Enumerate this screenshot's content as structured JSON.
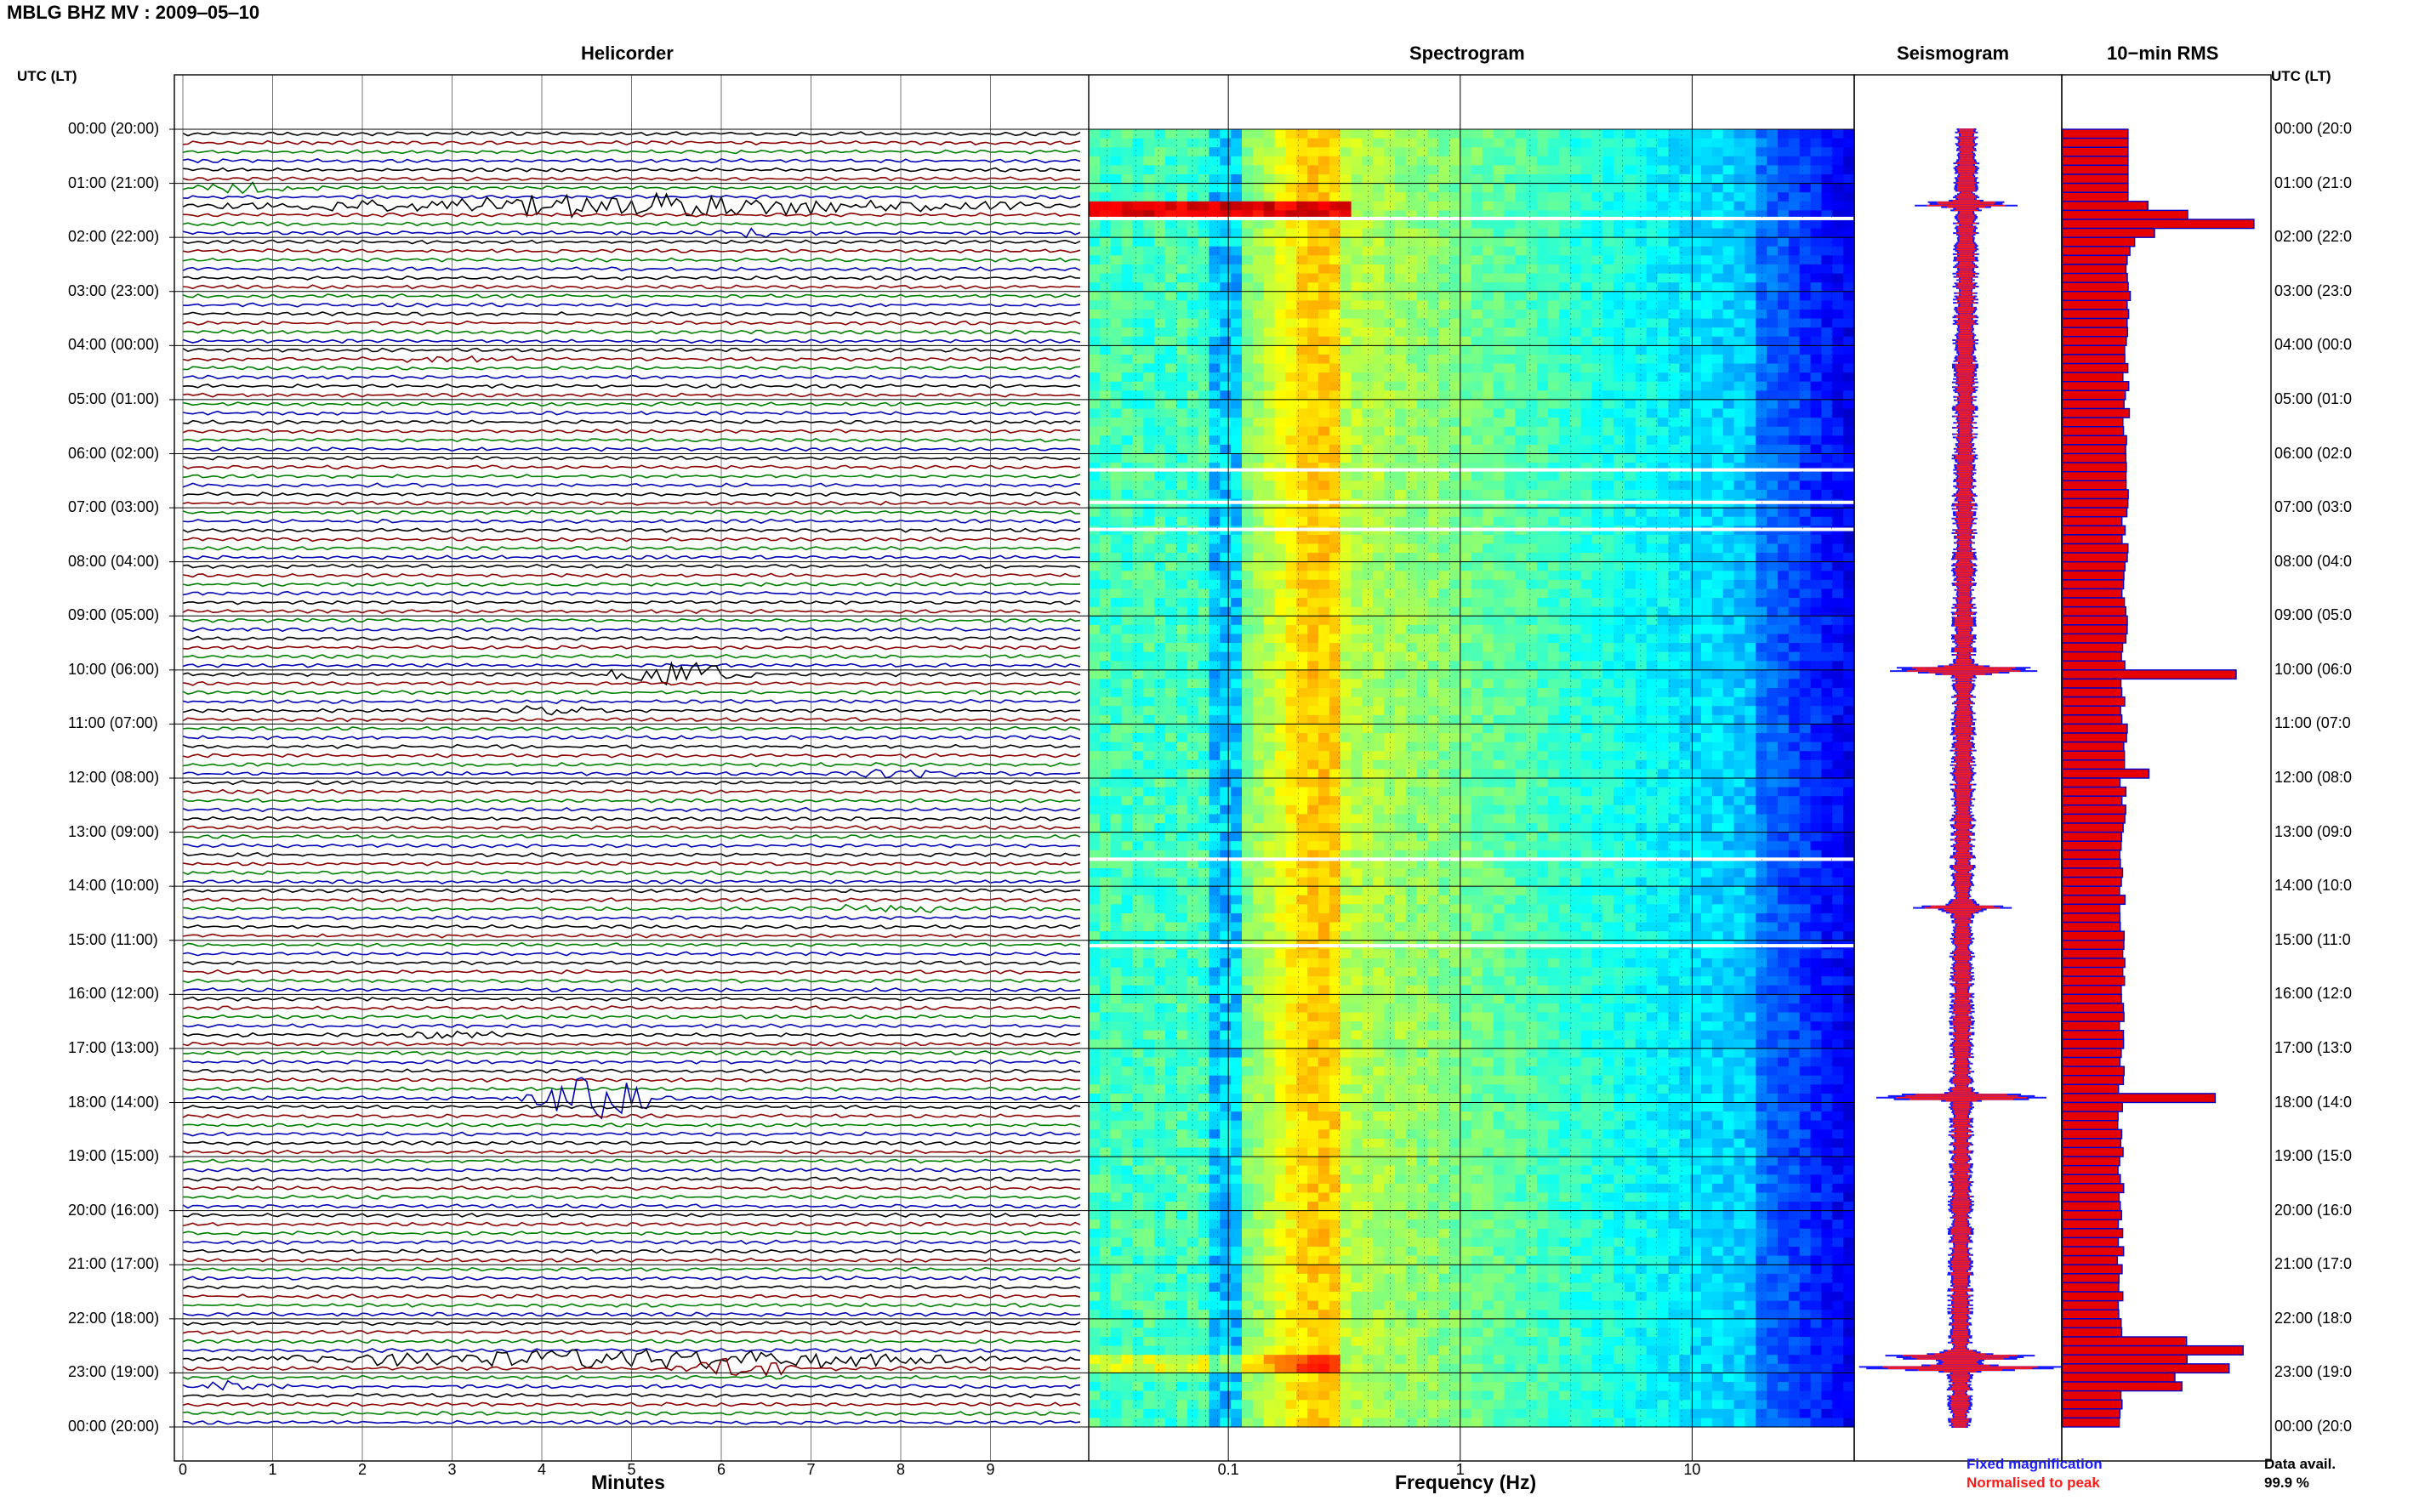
{
  "figure": {
    "station_title": "MBLG BHZ MV : 2009‒05‒10",
    "utc_label_left": "UTC (LT)",
    "utc_label_right": "UTC (LT)",
    "time_labels": [
      "00:00 (20:00)",
      "01:00 (21:00)",
      "02:00 (22:00)",
      "03:00 (23:00)",
      "04:00 (00:00)",
      "05:00 (01:00)",
      "06:00 (02:00)",
      "07:00 (03:00)",
      "08:00 (04:00)",
      "09:00 (05:00)",
      "10:00 (06:00)",
      "11:00 (07:00)",
      "12:00 (08:00)",
      "13:00 (09:00)",
      "14:00 (10:00)",
      "15:00 (11:00)",
      "16:00 (12:00)",
      "17:00 (13:00)",
      "18:00 (14:00)",
      "19:00 (15:00)",
      "20:00 (16:00)",
      "21:00 (17:00)",
      "22:00 (18:00)",
      "23:00 (19:00)",
      "00:00 (20:00)"
    ],
    "time_labels_right": [
      "00:00 (20:0",
      "01:00 (21:0",
      "02:00 (22:0",
      "03:00 (23:0",
      "04:00 (00:0",
      "05:00 (01:0",
      "06:00 (02:0",
      "07:00 (03:0",
      "08:00 (04:0",
      "09:00 (05:0",
      "10:00 (06:0",
      "11:00 (07:0",
      "12:00 (08:0",
      "13:00 (09:0",
      "14:00 (10:0",
      "15:00 (11:0",
      "16:00 (12:0",
      "17:00 (13:0",
      "18:00 (14:0",
      "19:00 (15:0",
      "20:00 (16:0",
      "21:00 (17:0",
      "22:00 (18:0",
      "23:00 (19:0",
      "00:00 (20:0"
    ],
    "legend": {
      "fixed": "Fixed magnification",
      "normalised": "Normalised to peak"
    },
    "data_avail_label": "Data avail.",
    "data_avail_value": "99.9 %",
    "colors": {
      "trace1": "#000000",
      "trace2": "#8b0000",
      "trace3": "#008000",
      "trace4": "#0000b4",
      "rms_fill": "#e60000",
      "rms_edge": "#0000c8"
    }
  },
  "chart_data": [
    {
      "type": "line",
      "title": "Helicorder",
      "xlabel": "Minutes",
      "ylabel": "",
      "xlim": [
        0,
        10
      ],
      "x_ticks": [
        "0",
        "1",
        "2",
        "3",
        "4",
        "5",
        "6",
        "7",
        "8",
        "9"
      ],
      "rows_per_hour": 6,
      "row_colors": [
        "trace1",
        "trace2",
        "trace3",
        "trace4"
      ],
      "events": [
        {
          "time_h": 1.0,
          "minute": 0.7,
          "amp": 6
        },
        {
          "time_h": 1.4,
          "minute": 5.0,
          "amp": 14,
          "broad": true
        },
        {
          "time_h": 1.8,
          "minute": 6.4,
          "amp": 5
        },
        {
          "time_h": 4.1,
          "minute": 3.0,
          "amp": 4
        },
        {
          "time_h": 10.0,
          "minute": 5.5,
          "amp": 18
        },
        {
          "time_h": 10.7,
          "minute": 4.0,
          "amp": 4
        },
        {
          "time_h": 11.8,
          "minute": 8.0,
          "amp": 6
        },
        {
          "time_h": 14.3,
          "minute": 7.9,
          "amp": 6
        },
        {
          "time_h": 16.7,
          "minute": 3.0,
          "amp": 4
        },
        {
          "time_h": 17.8,
          "minute": 4.6,
          "amp": 26
        },
        {
          "time_h": 22.6,
          "minute": 5.0,
          "amp": 12,
          "broad": true
        },
        {
          "time_h": 22.9,
          "minute": 6.2,
          "amp": 14
        },
        {
          "time_h": 23.2,
          "minute": 0.5,
          "amp": 6
        }
      ]
    },
    {
      "type": "heatmap",
      "title": "Spectrogram",
      "xlabel": "Frequency (Hz)",
      "ylabel": "",
      "x_scale": "log",
      "xlim": [
        0.025,
        50
      ],
      "x_ticks": [
        "0.1",
        "1",
        "10"
      ],
      "gaps_h": [
        1.65,
        6.3,
        6.9,
        7.4,
        13.5,
        15.1
      ],
      "colormap": "jet"
    },
    {
      "type": "line",
      "title": "Seismogram",
      "series": [
        {
          "name": "Fixed magnification",
          "color": "#1a1aff"
        },
        {
          "name": "Normalised to peak",
          "color": "#ff1a1a"
        }
      ],
      "spikes_h": [
        {
          "t": 1.4,
          "a": 0.5
        },
        {
          "t": 10.0,
          "a": 0.8
        },
        {
          "t": 14.4,
          "a": 0.35
        },
        {
          "t": 17.9,
          "a": 1.0
        },
        {
          "t": 22.7,
          "a": 0.9
        },
        {
          "t": 22.9,
          "a": 0.7
        }
      ]
    },
    {
      "type": "bar",
      "title": "10−min RMS",
      "orientation": "horizontal",
      "bins_per_hour": 6,
      "values_first_bins": [
        1.0,
        1.0,
        1.0,
        1.0,
        1.0,
        1.0,
        1.0,
        1.0,
        1.3,
        1.9,
        2.9,
        1.4,
        1.1
      ],
      "peaks": [
        {
          "t": 10.0,
          "v": 2.5
        },
        {
          "t": 17.9,
          "v": 2.2
        },
        {
          "t": 22.5,
          "v": 2.6
        },
        {
          "t": 22.8,
          "v": 2.4
        },
        {
          "t": 11.8,
          "v": 1.25
        }
      ],
      "baseline_start": 0.95,
      "baseline_end": 0.82
    }
  ]
}
